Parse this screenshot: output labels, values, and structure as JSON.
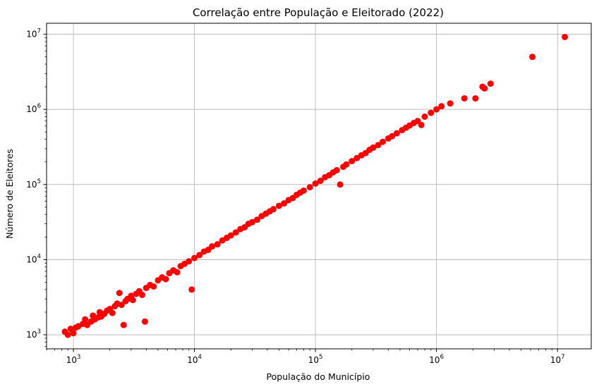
{
  "chart_data": {
    "type": "scatter",
    "title": "Correlação entre População e Eleitorado (2022)",
    "xlabel": "População do Município",
    "ylabel": "Número de Eleitores",
    "xscale": "log",
    "yscale": "log",
    "xlim": [
      600,
      19000000
    ],
    "ylim": [
      650,
      14000000
    ],
    "grid": true,
    "marker_color": "#ff0000",
    "x_ticks": [
      {
        "base": "10",
        "exp": "3",
        "value": 1000
      },
      {
        "base": "10",
        "exp": "4",
        "value": 10000
      },
      {
        "base": "10",
        "exp": "5",
        "value": 100000
      },
      {
        "base": "10",
        "exp": "6",
        "value": 1000000
      },
      {
        "base": "10",
        "exp": "7",
        "value": 10000000
      }
    ],
    "y_ticks": [
      {
        "base": "10",
        "exp": "3",
        "value": 1000
      },
      {
        "base": "10",
        "exp": "4",
        "value": 10000
      },
      {
        "base": "10",
        "exp": "5",
        "value": 100000
      },
      {
        "base": "10",
        "exp": "6",
        "value": 1000000
      },
      {
        "base": "10",
        "exp": "7",
        "value": 10000000
      }
    ],
    "points": [
      [
        850,
        1100
      ],
      [
        900,
        1000
      ],
      [
        950,
        1200
      ],
      [
        1000,
        1050
      ],
      [
        1050,
        1250
      ],
      [
        1100,
        1300
      ],
      [
        1200,
        1400
      ],
      [
        1250,
        1600
      ],
      [
        1300,
        1350
      ],
      [
        1400,
        1500
      ],
      [
        1450,
        1800
      ],
      [
        1500,
        1600
      ],
      [
        1600,
        1700
      ],
      [
        1650,
        2000
      ],
      [
        1700,
        1750
      ],
      [
        1800,
        1900
      ],
      [
        1900,
        2100
      ],
      [
        2000,
        2200
      ],
      [
        2100,
        1950
      ],
      [
        2200,
        2400
      ],
      [
        2300,
        2600
      ],
      [
        2400,
        3600
      ],
      [
        2500,
        2500
      ],
      [
        2600,
        1350
      ],
      [
        2700,
        2800
      ],
      [
        2800,
        3000
      ],
      [
        3000,
        3300
      ],
      [
        3100,
        2900
      ],
      [
        3300,
        3500
      ],
      [
        3500,
        3800
      ],
      [
        3700,
        3400
      ],
      [
        3900,
        1500
      ],
      [
        4000,
        4200
      ],
      [
        4300,
        4600
      ],
      [
        4600,
        4400
      ],
      [
        5000,
        5300
      ],
      [
        5400,
        5800
      ],
      [
        5800,
        5500
      ],
      [
        6200,
        6600
      ],
      [
        6700,
        7200
      ],
      [
        7200,
        6800
      ],
      [
        7700,
        8200
      ],
      [
        8300,
        8800
      ],
      [
        9000,
        9500
      ],
      [
        9500,
        4000
      ],
      [
        10000,
        10500
      ],
      [
        11000,
        11500
      ],
      [
        12000,
        12800
      ],
      [
        13000,
        13500
      ],
      [
        14000,
        15000
      ],
      [
        15500,
        16000
      ],
      [
        17000,
        18000
      ],
      [
        18500,
        19500
      ],
      [
        20000,
        21000
      ],
      [
        22000,
        23000
      ],
      [
        24000,
        25500
      ],
      [
        26000,
        27000
      ],
      [
        28000,
        30000
      ],
      [
        30000,
        31500
      ],
      [
        33000,
        34000
      ],
      [
        36000,
        38000
      ],
      [
        39000,
        41000
      ],
      [
        42000,
        44000
      ],
      [
        45000,
        47000
      ],
      [
        50000,
        52000
      ],
      [
        55000,
        56000
      ],
      [
        60000,
        62000
      ],
      [
        65000,
        66000
      ],
      [
        70000,
        73000
      ],
      [
        75000,
        78000
      ],
      [
        80000,
        83000
      ],
      [
        90000,
        92000
      ],
      [
        100000,
        103000
      ],
      [
        110000,
        112000
      ],
      [
        120000,
        125000
      ],
      [
        130000,
        133000
      ],
      [
        140000,
        145000
      ],
      [
        150000,
        155000
      ],
      [
        160000,
        100000
      ],
      [
        170000,
        172000
      ],
      [
        180000,
        185000
      ],
      [
        200000,
        205000
      ],
      [
        220000,
        225000
      ],
      [
        240000,
        245000
      ],
      [
        260000,
        262000
      ],
      [
        280000,
        290000
      ],
      [
        300000,
        310000
      ],
      [
        330000,
        335000
      ],
      [
        360000,
        370000
      ],
      [
        400000,
        410000
      ],
      [
        430000,
        440000
      ],
      [
        470000,
        480000
      ],
      [
        520000,
        530000
      ],
      [
        560000,
        570000
      ],
      [
        600000,
        610000
      ],
      [
        650000,
        660000
      ],
      [
        700000,
        700000
      ],
      [
        750000,
        620000
      ],
      [
        800000,
        800000
      ],
      [
        900000,
        900000
      ],
      [
        1000000,
        1000000
      ],
      [
        1100000,
        1100000
      ],
      [
        1300000,
        1200000
      ],
      [
        1700000,
        1400000
      ],
      [
        2100000,
        1400000
      ],
      [
        2400000,
        2000000
      ],
      [
        2500000,
        1900000
      ],
      [
        2800000,
        2200000
      ],
      [
        6200000,
        5000000
      ],
      [
        11500000,
        9200000
      ]
    ]
  }
}
